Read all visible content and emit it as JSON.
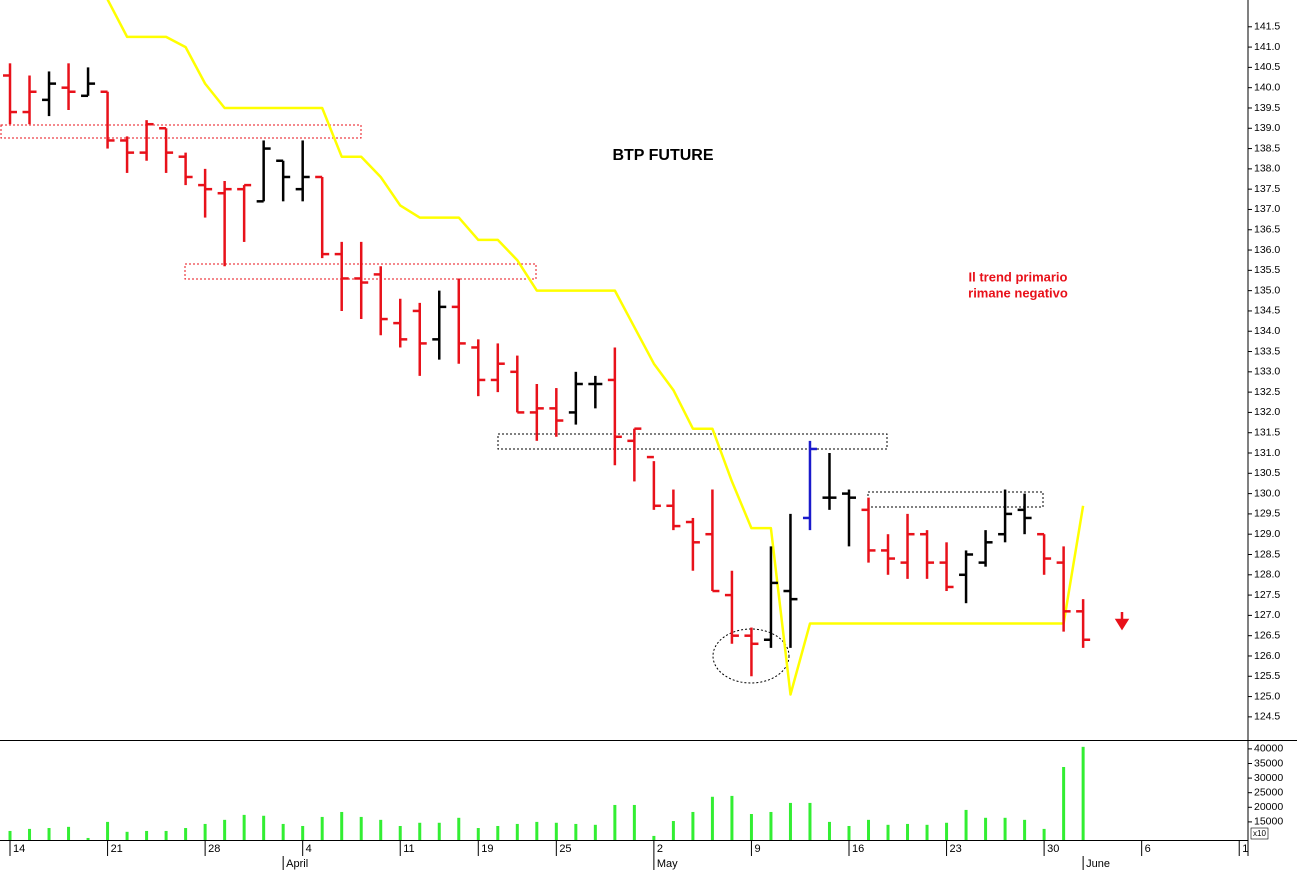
{
  "chart_data": [
    {
      "type": "ohlc",
      "title": "BTP FUTURE",
      "annotation": [
        "Il trend primario",
        "rimane negativo"
      ],
      "xlim": [
        -0.513,
        63.45
      ],
      "ylim": [
        123.93,
        142.16
      ],
      "yticks": [
        124.5,
        {
          "value": 125,
          "label": "125.0"
        },
        125.5,
        {
          "value": 126,
          "label": "126.0"
        },
        126.5,
        {
          "value": 127,
          "label": "127.0"
        },
        127.5,
        {
          "value": 128,
          "label": "128.0"
        },
        128.5,
        {
          "value": 129,
          "label": "129.0"
        },
        129.5,
        {
          "value": 130,
          "label": "130.0"
        },
        130.5,
        {
          "value": 131,
          "label": "131.0"
        },
        131.5,
        {
          "value": 132,
          "label": "132.0"
        },
        132.5,
        {
          "value": 133,
          "label": "133.0"
        },
        133.5,
        {
          "value": 134,
          "label": "134.0"
        },
        134.5,
        {
          "value": 135,
          "label": "135.0"
        },
        135.5,
        {
          "value": 136,
          "label": "136.0"
        },
        136.5,
        {
          "value": 137,
          "label": "137.0"
        },
        137.5,
        {
          "value": 138,
          "label": "138.0"
        },
        138.5,
        {
          "value": 139,
          "label": "139.0"
        },
        139.5,
        {
          "value": 140,
          "label": "140.0"
        },
        140.5,
        {
          "value": 141,
          "label": "141.0"
        },
        141.5
      ],
      "open": [
        140.3,
        139.4,
        139.7,
        140.0,
        139.8,
        139.9,
        138.7,
        138.4,
        139.0,
        138.3,
        137.6,
        137.4,
        137.5,
        137.2,
        138.2,
        137.5,
        137.8,
        135.9,
        135.3,
        135.4,
        134.2,
        134.5,
        133.8,
        134.6,
        133.6,
        132.8,
        133.0,
        132.0,
        132.1,
        132.0,
        132.7,
        132.8,
        131.3,
        130.9,
        129.7,
        129.3,
        129.0,
        127.5,
        126.5,
        126.4,
        127.6,
        129.4,
        129.9,
        130.0,
        129.6,
        128.6,
        128.3,
        129.0,
        128.3,
        128.0,
        128.3,
        129.0,
        129.6,
        129.0,
        128.3,
        127.1
      ],
      "high": [
        140.6,
        140.3,
        140.4,
        140.6,
        140.5,
        139.9,
        138.8,
        139.2,
        139.0,
        138.4,
        138.0,
        137.7,
        137.6,
        138.7,
        138.2,
        138.7,
        137.8,
        136.2,
        136.2,
        135.6,
        134.8,
        134.7,
        135.0,
        135.3,
        133.8,
        133.7,
        133.4,
        132.7,
        132.6,
        133.0,
        132.9,
        133.6,
        131.6,
        130.8,
        130.1,
        129.4,
        130.1,
        128.1,
        126.7,
        128.7,
        129.5,
        131.3,
        131.0,
        130.1,
        129.9,
        129.0,
        129.5,
        129.1,
        128.8,
        128.6,
        129.1,
        130.1,
        130.0,
        129.0,
        128.7,
        127.4
      ],
      "low": [
        139.1,
        139.1,
        139.3,
        139.45,
        139.8,
        138.5,
        137.9,
        138.2,
        137.9,
        137.6,
        136.8,
        135.6,
        136.2,
        137.2,
        137.2,
        137.2,
        135.8,
        134.5,
        134.3,
        133.9,
        133.6,
        132.9,
        133.3,
        133.2,
        132.4,
        132.5,
        132.0,
        131.3,
        131.4,
        131.7,
        132.1,
        130.7,
        130.3,
        129.6,
        129.1,
        128.1,
        127.6,
        126.3,
        125.5,
        126.2,
        126.2,
        129.1,
        129.6,
        128.7,
        128.3,
        128.0,
        127.9,
        127.9,
        127.6,
        127.3,
        128.2,
        128.8,
        129.0,
        128.0,
        126.6,
        126.2
      ],
      "close": [
        139.4,
        139.9,
        140.1,
        139.9,
        140.1,
        138.7,
        138.4,
        139.1,
        138.4,
        137.8,
        137.5,
        137.5,
        137.6,
        138.5,
        137.8,
        137.8,
        135.9,
        135.3,
        135.2,
        134.3,
        133.8,
        133.7,
        134.6,
        133.7,
        132.8,
        133.2,
        132.0,
        132.1,
        131.8,
        132.7,
        132.7,
        131.4,
        131.6,
        129.7,
        129.2,
        128.8,
        127.6,
        126.5,
        126.3,
        127.8,
        127.4,
        131.1,
        129.9,
        129.9,
        128.6,
        128.4,
        129.0,
        128.3,
        127.7,
        128.5,
        128.8,
        129.5,
        129.4,
        128.4,
        127.1,
        126.4
      ],
      "colors": [
        "#e8111a",
        "#e8111a",
        "#000000",
        "#e8111a",
        "#000000",
        "#e8111a",
        "#e8111a",
        "#e8111a",
        "#e8111a",
        "#e8111a",
        "#e8111a",
        "#e8111a",
        "#e8111a",
        "#000000",
        "#000000",
        "#000000",
        "#e8111a",
        "#e8111a",
        "#e8111a",
        "#e8111a",
        "#e8111a",
        "#e8111a",
        "#000000",
        "#e8111a",
        "#e8111a",
        "#e8111a",
        "#e8111a",
        "#e8111a",
        "#e8111a",
        "#000000",
        "#000000",
        "#e8111a",
        "#e8111a",
        "#e8111a",
        "#e8111a",
        "#e8111a",
        "#e8111a",
        "#e8111a",
        "#e8111a",
        "#000000",
        "#000000",
        "#1a1acc",
        "#000000",
        "#000000",
        "#e8111a",
        "#e8111a",
        "#e8111a",
        "#e8111a",
        "#e8111a",
        "#000000",
        "#000000",
        "#000000",
        "#000000",
        "#e8111a",
        "#e8111a",
        "#e8111a"
      ],
      "line": {
        "color": "#ffff00",
        "x": [
          5,
          6,
          8,
          9,
          10,
          11,
          16,
          17,
          18,
          19,
          20,
          21,
          23,
          24,
          25,
          26,
          27,
          31,
          32,
          33,
          34,
          35,
          36,
          37,
          38,
          39,
          40,
          41,
          54,
          55
        ],
        "values": [
          142.17,
          141.25,
          141.25,
          141.0,
          140.1,
          139.5,
          139.5,
          138.3,
          138.3,
          137.8,
          137.1,
          136.8,
          136.8,
          136.25,
          136.25,
          135.75,
          135.0,
          135.0,
          134.1,
          133.2,
          132.55,
          131.6,
          131.6,
          130.3,
          129.15,
          129.15,
          125.05,
          126.8,
          126.8,
          129.7
        ]
      }
    },
    {
      "type": "bar",
      "color": "#33ee33",
      "unit_label": "x10",
      "ylim": [
        8800,
        42700
      ],
      "yticks": [
        15000,
        20000,
        25000,
        30000,
        35000,
        40000
      ],
      "values": [
        11900,
        12600,
        12900,
        13300,
        9500,
        15000,
        11600,
        11900,
        11900,
        12900,
        14300,
        15700,
        17400,
        17100,
        14300,
        13600,
        16700,
        18400,
        16700,
        15700,
        13600,
        14700,
        14700,
        16400,
        12900,
        13600,
        14300,
        15000,
        14700,
        14300,
        14000,
        20800,
        20800,
        10200,
        15300,
        18400,
        23600,
        23900,
        17700,
        18400,
        21500,
        21500,
        15000,
        13600,
        15700,
        14000,
        14300,
        14000,
        14700,
        19100,
        16400,
        16400,
        15700,
        12600,
        33800,
        40700
      ],
      "xticks": [
        {
          "value": 0,
          "label": "14"
        },
        {
          "value": 5,
          "label": "21"
        },
        {
          "value": 10,
          "label": "28"
        },
        {
          "value": 15,
          "label": "4"
        },
        {
          "value": 20,
          "label": "11"
        },
        {
          "value": 24,
          "label": "19"
        },
        {
          "value": 28,
          "label": "25"
        },
        {
          "value": 33,
          "label": "2"
        },
        {
          "value": 38,
          "label": "9"
        },
        {
          "value": 43,
          "label": "16"
        },
        {
          "value": 48,
          "label": "23"
        },
        {
          "value": 53,
          "label": "30"
        },
        {
          "value": 58,
          "label": "6"
        },
        {
          "value": 63,
          "label": "1"
        }
      ],
      "month_ticks": [
        {
          "value": 14,
          "label": "April"
        },
        {
          "value": 33,
          "label": "May"
        },
        {
          "value": 55,
          "label": "June"
        }
      ]
    }
  ]
}
